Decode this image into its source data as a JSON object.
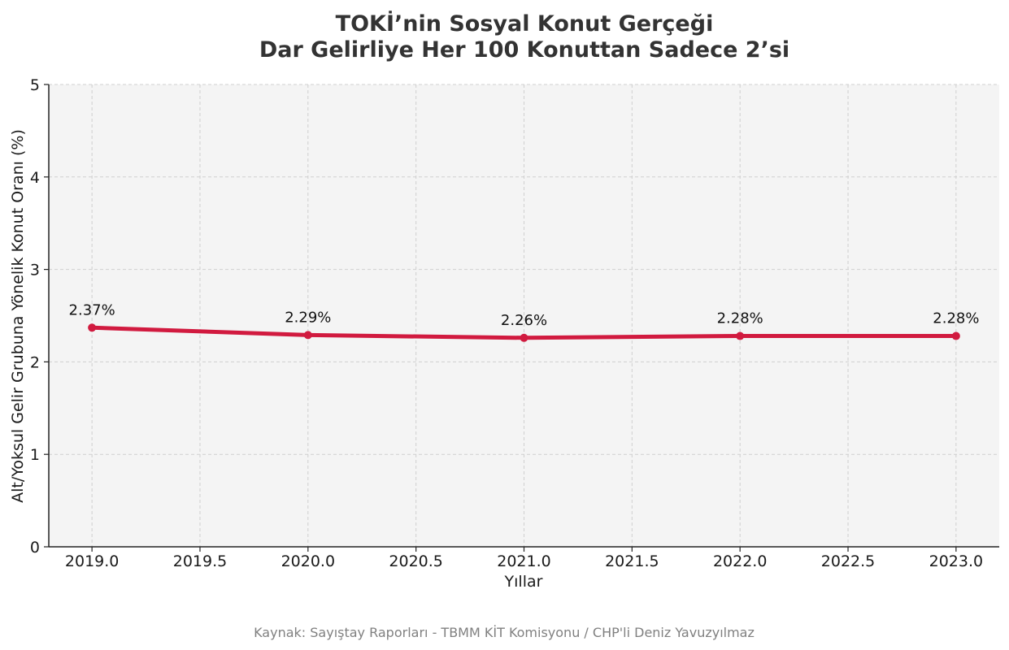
{
  "chart_data": {
    "type": "line",
    "title_line1": "TOKİ’nin Sosyal Konut Gerçeği",
    "title_line2": "Dar Gelirliye Her 100 Konuttan Sadece 2’si",
    "xlabel": "Yıllar",
    "ylabel": "Alt/Yoksul Gelir Grubuna Yönelik Konut Oranı (%)",
    "x": [
      2019,
      2020,
      2021,
      2022,
      2023
    ],
    "values": [
      2.37,
      2.29,
      2.26,
      2.28,
      2.28
    ],
    "data_labels": [
      "2.37%",
      "2.29%",
      "2.26%",
      "2.28%",
      "2.28%"
    ],
    "xlim": [
      2018.8,
      2023.2
    ],
    "ylim": [
      0,
      5
    ],
    "x_ticks": [
      2019.0,
      2019.5,
      2020.0,
      2020.5,
      2021.0,
      2021.5,
      2022.0,
      2022.5,
      2023.0
    ],
    "x_tick_labels": [
      "2019.0",
      "2019.5",
      "2020.0",
      "2020.5",
      "2021.0",
      "2021.5",
      "2022.0",
      "2022.5",
      "2023.0"
    ],
    "y_ticks": [
      0,
      1,
      2,
      3,
      4,
      5
    ],
    "y_tick_labels": [
      "0",
      "1",
      "2",
      "3",
      "4",
      "5"
    ],
    "grid": true,
    "line_color": "#d11a3f",
    "plot_background": "#f4f4f4"
  },
  "source": "Kaynak: Sayıştay Raporları - TBMM KİT Komisyonu / CHP'li Deniz Yavuzyılmaz"
}
